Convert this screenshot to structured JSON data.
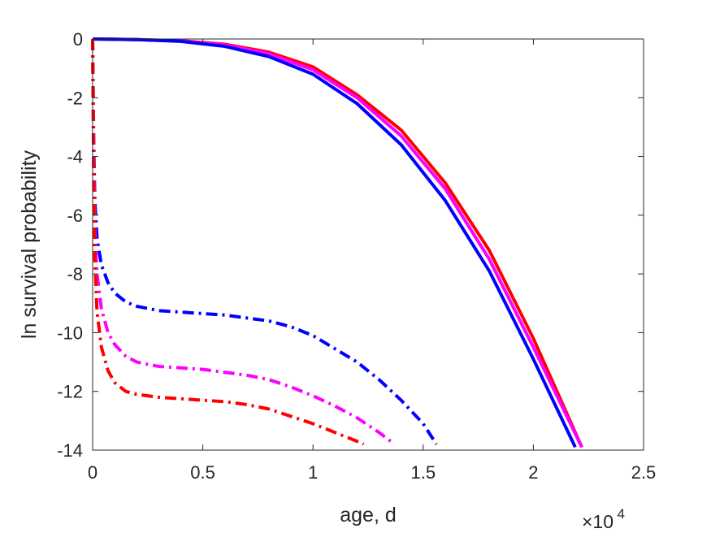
{
  "chart_data": {
    "type": "line",
    "xlabel": "age, d",
    "ylabel": "ln survival probability",
    "xlim": [
      0,
      25000
    ],
    "ylim": [
      -14,
      0
    ],
    "x_ticks": [
      0,
      5000,
      10000,
      15000,
      20000,
      25000
    ],
    "x_tick_labels": [
      "0",
      "0.5",
      "1",
      "1.5",
      "2",
      "2.5"
    ],
    "x_exponent_base": "×10",
    "x_exponent_power": "4",
    "y_ticks": [
      0,
      -2,
      -4,
      -6,
      -8,
      -10,
      -12,
      -14
    ],
    "y_tick_labels": [
      "0",
      "-2",
      "-4",
      "-6",
      "-8",
      "-10",
      "-12",
      "-14"
    ],
    "grid": false,
    "box": true,
    "series": [
      {
        "color": "#ff0000",
        "style": "solid",
        "x": [
          0,
          2000,
          4000,
          6000,
          8000,
          10000,
          12000,
          14000,
          16000,
          18000,
          20000,
          22200
        ],
        "y": [
          0,
          -0.02,
          -0.06,
          -0.18,
          -0.45,
          -0.95,
          -1.9,
          -3.1,
          -4.9,
          -7.2,
          -10.2,
          -13.9
        ]
      },
      {
        "color": "#ff00ff",
        "style": "solid",
        "x": [
          0,
          2000,
          4000,
          6000,
          8000,
          10000,
          12000,
          14000,
          16000,
          18000,
          20000,
          22200
        ],
        "y": [
          0,
          -0.02,
          -0.07,
          -0.2,
          -0.5,
          -1.05,
          -2.0,
          -3.3,
          -5.1,
          -7.5,
          -10.5,
          -13.9
        ]
      },
      {
        "color": "#0000ff",
        "style": "solid",
        "x": [
          0,
          2000,
          4000,
          6000,
          8000,
          10000,
          12000,
          14000,
          16000,
          18000,
          20000,
          21900
        ],
        "y": [
          0,
          -0.02,
          -0.08,
          -0.25,
          -0.6,
          -1.2,
          -2.2,
          -3.6,
          -5.5,
          -7.9,
          -10.9,
          -13.9
        ]
      },
      {
        "color": "#0000ff",
        "style": "dashdot",
        "x": [
          0,
          50,
          100,
          200,
          400,
          700,
          1000,
          1500,
          2000,
          3000,
          4000,
          5000,
          6000,
          7000,
          8000,
          9000,
          10000,
          11000,
          12000,
          13000,
          14000,
          15000,
          15600
        ],
        "y": [
          0,
          -3.5,
          -5.5,
          -6.8,
          -7.7,
          -8.3,
          -8.65,
          -8.95,
          -9.1,
          -9.25,
          -9.3,
          -9.35,
          -9.4,
          -9.5,
          -9.6,
          -9.8,
          -10.1,
          -10.55,
          -11.0,
          -11.6,
          -12.3,
          -13.1,
          -13.8
        ]
      },
      {
        "color": "#ff00ff",
        "style": "dashdot",
        "x": [
          0,
          50,
          100,
          200,
          400,
          700,
          1000,
          1500,
          2000,
          3000,
          4000,
          5000,
          6000,
          7000,
          8000,
          9000,
          10000,
          11000,
          12000,
          13000,
          13700
        ],
        "y": [
          0,
          -4.0,
          -6.5,
          -8.0,
          -9.2,
          -10.0,
          -10.4,
          -10.8,
          -11.0,
          -11.15,
          -11.2,
          -11.25,
          -11.35,
          -11.45,
          -11.6,
          -11.85,
          -12.15,
          -12.5,
          -12.9,
          -13.4,
          -13.8
        ]
      },
      {
        "color": "#ff0000",
        "style": "dashdot",
        "x": [
          0,
          50,
          100,
          200,
          400,
          700,
          1000,
          1500,
          2000,
          3000,
          4000,
          5000,
          6000,
          7000,
          8000,
          9000,
          10000,
          11000,
          12000,
          12300
        ],
        "y": [
          0,
          -5.0,
          -7.5,
          -9.3,
          -10.5,
          -11.3,
          -11.7,
          -12.0,
          -12.1,
          -12.2,
          -12.25,
          -12.3,
          -12.35,
          -12.45,
          -12.6,
          -12.85,
          -13.1,
          -13.4,
          -13.7,
          -13.8
        ]
      }
    ]
  }
}
